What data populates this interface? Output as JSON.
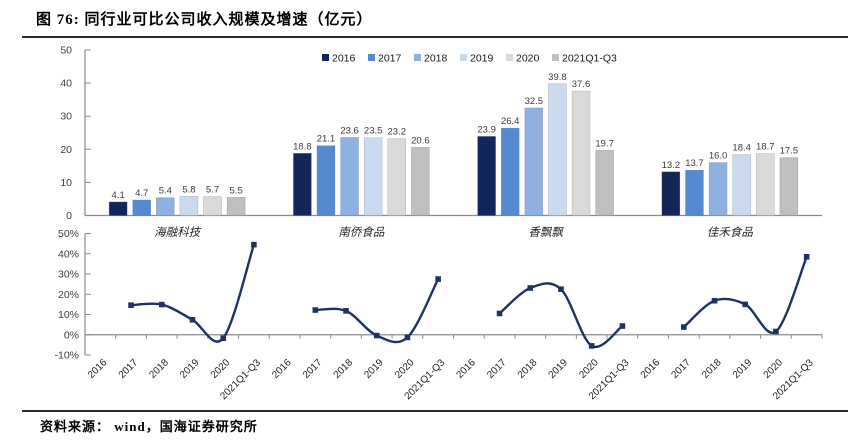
{
  "header": {
    "title": "图 76:  同行业可比公司收入规模及增速（亿元）"
  },
  "footer": {
    "source": "资料来源：  wind，国海证券研究所"
  },
  "chart_data": [
    {
      "type": "bar",
      "title": "同行业可比公司收入规模（亿元）",
      "categories": [
        "海融科技",
        "南侨食品",
        "香飘飘",
        "佳禾食品"
      ],
      "series": [
        {
          "name": "2016",
          "color": "#12265a",
          "values": [
            4.1,
            18.8,
            23.9,
            13.2
          ]
        },
        {
          "name": "2017",
          "color": "#5589d0",
          "values": [
            4.7,
            21.1,
            26.4,
            13.7
          ]
        },
        {
          "name": "2018",
          "color": "#8fb1e0",
          "values": [
            5.4,
            23.6,
            32.5,
            16.0
          ]
        },
        {
          "name": "2019",
          "color": "#c9daf0",
          "values": [
            5.8,
            23.5,
            39.8,
            18.4
          ]
        },
        {
          "name": "2020",
          "color": "#d9d9d9",
          "values": [
            5.7,
            23.2,
            37.6,
            18.7
          ]
        },
        {
          "name": "2021Q1-Q3",
          "color": "#bfbfbf",
          "values": [
            5.5,
            20.6,
            19.7,
            17.5
          ]
        }
      ],
      "ylim": [
        0,
        50
      ],
      "yticks": [
        0,
        10,
        20,
        30,
        40,
        50
      ],
      "value_labels": true,
      "legend_position": "top",
      "grid": false
    },
    {
      "type": "line",
      "title": "同行业可比公司收入增速（%）",
      "x_labels": [
        "2016",
        "2017",
        "2018",
        "2019",
        "2020",
        "2021Q1-Q3"
      ],
      "line_color": "#1d3364",
      "series": [
        {
          "name": "海融科技",
          "values": [
            null,
            14.6,
            14.9,
            7.4,
            -1.7,
            44.5
          ]
        },
        {
          "name": "南侨食品",
          "values": [
            null,
            12.2,
            11.8,
            -0.4,
            -1.3,
            27.5
          ]
        },
        {
          "name": "香飘飘",
          "values": [
            null,
            10.5,
            23.1,
            22.5,
            -5.5,
            4.3
          ]
        },
        {
          "name": "佳禾食品",
          "values": [
            null,
            3.8,
            16.8,
            15.0,
            1.6,
            38.5
          ]
        }
      ],
      "ylim_pct": [
        -10,
        50
      ],
      "yticks_pct": [
        "50%",
        "40%",
        "30%",
        "20%",
        "10%",
        "0%",
        "-10%"
      ],
      "grid": false,
      "marker": "square"
    }
  ]
}
